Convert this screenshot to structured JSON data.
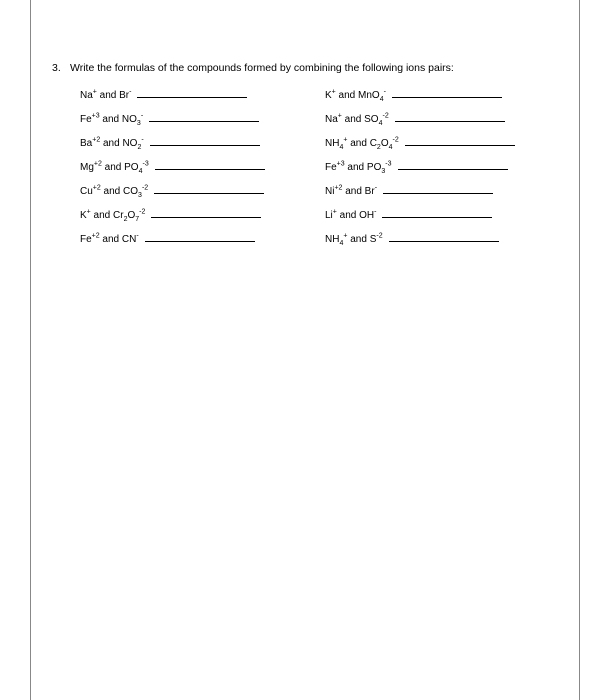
{
  "question": {
    "number": "3.",
    "text": "Write the formulas of the compounds formed by combining the following ions pairs:"
  },
  "left_column": [
    {
      "cation": "Na",
      "cation_charge": "+",
      "anion": "Br",
      "anion_charge": "-"
    },
    {
      "cation": "Fe",
      "cation_charge": "+3",
      "anion": "NO",
      "anion_sub": "3",
      "anion_charge": "-"
    },
    {
      "cation": "Ba",
      "cation_charge": "+2",
      "anion": "NO",
      "anion_sub": "2",
      "anion_charge": "-"
    },
    {
      "cation": "Mg",
      "cation_charge": "+2",
      "anion": "PO",
      "anion_sub": "4",
      "anion_charge": "-3"
    },
    {
      "cation": "Cu",
      "cation_charge": "+2",
      "anion": "CO",
      "anion_sub": "3",
      "anion_charge": "-2"
    },
    {
      "cation": "K",
      "cation_charge": "+",
      "anion": "Cr",
      "anion_sub": "2",
      "anion2": "O",
      "anion2_sub": "7",
      "anion_charge": "-2"
    },
    {
      "cation": "Fe",
      "cation_charge": "+2",
      "anion": "CN",
      "anion_charge": "-"
    }
  ],
  "right_column": [
    {
      "cation": "K",
      "cation_charge": "+",
      "anion": "MnO",
      "anion_sub": "4",
      "anion_charge": "-"
    },
    {
      "cation": "Na",
      "cation_charge": "+",
      "anion": "SO",
      "anion_sub": "4",
      "anion_charge": "-2"
    },
    {
      "cation": "NH",
      "cation_sub": "4",
      "cation_charge": "+",
      "anion": "C",
      "anion_sub": "2",
      "anion2": "O",
      "anion2_sub": "4",
      "anion_charge": "-2"
    },
    {
      "cation": "Fe",
      "cation_charge": "+3",
      "anion": "PO",
      "anion_sub": "3",
      "anion_charge": "-3"
    },
    {
      "cation": "Ni",
      "cation_charge": "+2",
      "anion": "Br",
      "anion_charge": "-"
    },
    {
      "cation": "Li",
      "cation_charge": "+",
      "anion": "OH",
      "anion_charge": "-"
    },
    {
      "cation": "NH",
      "cation_sub": "4",
      "cation_charge": "+",
      "anion": "S",
      "anion_charge": "-2"
    }
  ],
  "joiner": "and"
}
